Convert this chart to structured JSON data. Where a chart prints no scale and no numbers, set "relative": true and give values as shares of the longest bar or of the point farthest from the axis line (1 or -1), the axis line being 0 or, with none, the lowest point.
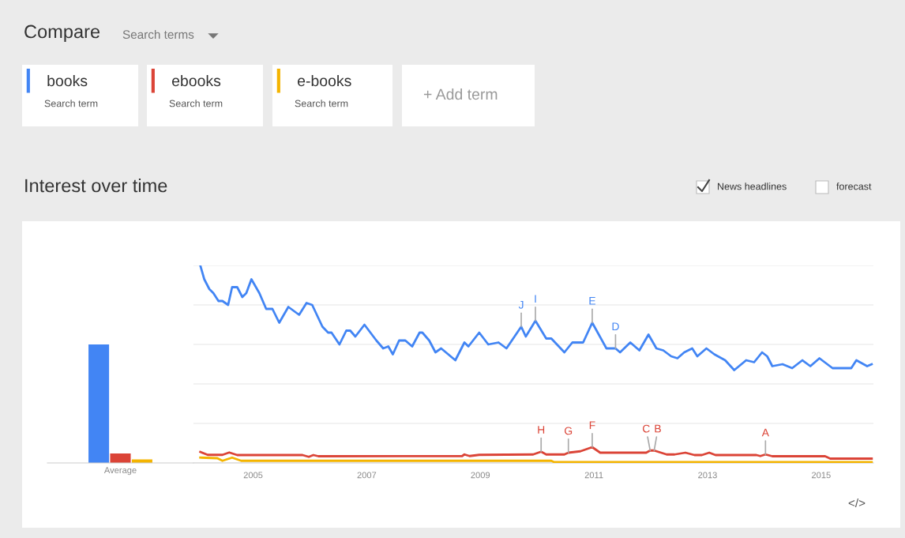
{
  "chart_data": [
    {
      "type": "other",
      "title": "Compare",
      "annotations": [
        "Search terms",
        "Search term",
        "Search term",
        "Search term",
        "+ Add term",
        "News headlines",
        "forecast",
        "</>"
      ]
    },
    {
      "type": "bar",
      "categories": [
        "Average"
      ],
      "relative": true,
      "series": [
        {
          "color": "#4285f4",
          "values": [
            1.0
          ]
        },
        {
          "color": "#db4437",
          "values": [
            0.08
          ]
        },
        {
          "color": "#f4b400",
          "values": [
            0.03
          ]
        }
      ]
    },
    {
      "type": "line",
      "title": "Interest over time",
      "relative": true,
      "grid": "y",
      "legend": "top left",
      "xlim": [
        2003.95,
        2015.92
      ],
      "xticks": [
        2005,
        2007,
        2009,
        2011,
        2013,
        2015
      ],
      "series": [
        {
          "name": "books",
          "color": "#4285f4",
          "x": [
            2004.07,
            2004.14,
            2004.23,
            2004.3,
            2004.39,
            2004.46,
            2004.56,
            2004.63,
            2004.72,
            2004.81,
            2004.88,
            2004.97,
            2005.11,
            2005.23,
            2005.34,
            2005.46,
            2005.62,
            2005.81,
            2005.94,
            2006.04,
            2006.22,
            2006.32,
            2006.38,
            2006.52,
            2006.64,
            2006.71,
            2006.8,
            2006.96,
            2007.17,
            2007.29,
            2007.38,
            2007.46,
            2007.57,
            2007.68,
            2007.8,
            2007.93,
            2007.98,
            2008.1,
            2008.21,
            2008.31,
            2008.56,
            2008.72,
            2008.79,
            2008.98,
            2009.14,
            2009.32,
            2009.46,
            2009.72,
            2009.8,
            2009.97,
            2010.16,
            2010.25,
            2010.48,
            2010.62,
            2010.81,
            2010.97,
            2011.22,
            2011.38,
            2011.46,
            2011.64,
            2011.8,
            2011.96,
            2012.1,
            2012.22,
            2012.36,
            2012.47,
            2012.59,
            2012.73,
            2012.82,
            2012.98,
            2013.12,
            2013.31,
            2013.47,
            2013.68,
            2013.82,
            2013.96,
            2014.05,
            2014.14,
            2014.32,
            2014.49,
            2014.67,
            2014.81,
            2014.97,
            2015.2,
            2015.53,
            2015.62,
            2015.81,
            2015.89
          ],
          "values": [
            1.0,
            0.93,
            0.88,
            0.86,
            0.82,
            0.82,
            0.8,
            0.89,
            0.89,
            0.84,
            0.86,
            0.93,
            0.86,
            0.78,
            0.78,
            0.71,
            0.79,
            0.75,
            0.81,
            0.8,
            0.69,
            0.66,
            0.66,
            0.6,
            0.67,
            0.67,
            0.64,
            0.7,
            0.62,
            0.58,
            0.59,
            0.55,
            0.62,
            0.62,
            0.59,
            0.66,
            0.66,
            0.62,
            0.56,
            0.58,
            0.52,
            0.61,
            0.59,
            0.66,
            0.6,
            0.61,
            0.58,
            0.69,
            0.64,
            0.72,
            0.63,
            0.63,
            0.56,
            0.61,
            0.61,
            0.71,
            0.58,
            0.58,
            0.56,
            0.61,
            0.57,
            0.65,
            0.58,
            0.57,
            0.54,
            0.53,
            0.56,
            0.58,
            0.54,
            0.58,
            0.55,
            0.52,
            0.47,
            0.52,
            0.51,
            0.56,
            0.54,
            0.49,
            0.5,
            0.48,
            0.52,
            0.49,
            0.53,
            0.48,
            0.48,
            0.52,
            0.49,
            0.5
          ]
        },
        {
          "name": "ebooks",
          "color": "#db4437",
          "x": [
            2004.07,
            2004.2,
            2004.46,
            2004.58,
            2004.72,
            2005.87,
            2005.98,
            2006.06,
            2006.15,
            2008.68,
            2008.72,
            2008.81,
            2008.98,
            2009.93,
            2010.07,
            2010.16,
            2010.48,
            2010.55,
            2010.76,
            2010.97,
            2011.11,
            2011.92,
            2011.99,
            2012.06,
            2012.28,
            2012.42,
            2012.61,
            2012.77,
            2012.9,
            2013.03,
            2013.14,
            2013.86,
            2013.93,
            2014.02,
            2014.14,
            2015.07,
            2015.16,
            2015.89
          ],
          "values": [
            0.056,
            0.041,
            0.041,
            0.053,
            0.04,
            0.04,
            0.031,
            0.04,
            0.034,
            0.035,
            0.043,
            0.035,
            0.041,
            0.043,
            0.057,
            0.043,
            0.043,
            0.052,
            0.059,
            0.08,
            0.052,
            0.052,
            0.063,
            0.063,
            0.043,
            0.043,
            0.052,
            0.04,
            0.04,
            0.052,
            0.04,
            0.04,
            0.035,
            0.043,
            0.034,
            0.034,
            0.022,
            0.022
          ]
        },
        {
          "name": "e-books",
          "color": "#f4b400",
          "x": [
            2004.07,
            2004.37,
            2004.46,
            2004.63,
            2004.79,
            2010.25,
            2010.3,
            2015.89
          ],
          "values": [
            0.027,
            0.024,
            0.011,
            0.027,
            0.011,
            0.011,
            0.004,
            0.004
          ]
        }
      ],
      "annotations": [
        {
          "text": "J",
          "x": 2009.72,
          "y": 0.69
        },
        {
          "text": "I",
          "x": 2009.97,
          "y": 0.72
        },
        {
          "text": "E",
          "x": 2010.97,
          "y": 0.71
        },
        {
          "text": "D",
          "x": 2011.38,
          "y": 0.58
        },
        {
          "text": "H",
          "x": 2010.07,
          "y": 0.057
        },
        {
          "text": "G",
          "x": 2010.55,
          "y": 0.052
        },
        {
          "text": "F",
          "x": 2010.97,
          "y": 0.08
        },
        {
          "text": "C",
          "x": 2011.99,
          "y": 0.063
        },
        {
          "text": "B",
          "x": 2012.06,
          "y": 0.063
        },
        {
          "text": "A",
          "x": 2014.02,
          "y": 0.043
        }
      ]
    }
  ]
}
